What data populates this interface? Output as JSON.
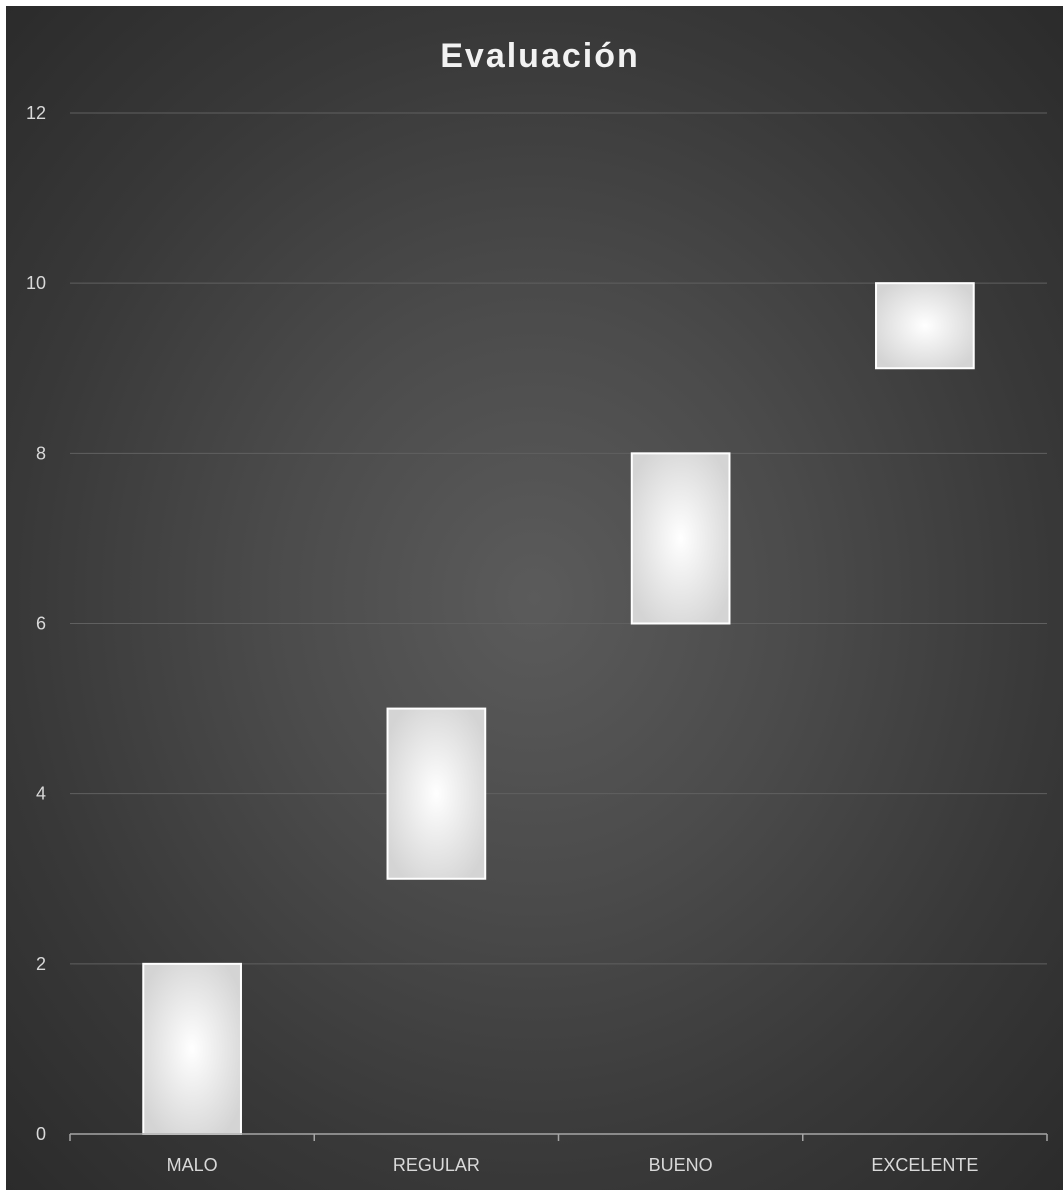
{
  "chart_data": {
    "type": "bar",
    "subtype": "floating",
    "title": "Evaluación",
    "categories": [
      "MALO",
      "REGULAR",
      "BUENO",
      "EXCELENTE"
    ],
    "ranges": [
      [
        0,
        2
      ],
      [
        3,
        5
      ],
      [
        6,
        8
      ],
      [
        9,
        10
      ]
    ],
    "ylim": [
      0,
      12
    ],
    "yticks": [
      "0",
      "2",
      "4",
      "6",
      "8",
      "10",
      "12"
    ],
    "grid": true,
    "legend": "none",
    "colors": {
      "background_center": "#5b5b5b",
      "background_edge": "#2b2b2b",
      "bar_center": "#ffffff",
      "bar_edge": "#d4d4d4",
      "bar_border": "#ffffff",
      "gridline": "#606060",
      "axis": "#a6a6a6",
      "text": "#d9d9d9"
    }
  }
}
